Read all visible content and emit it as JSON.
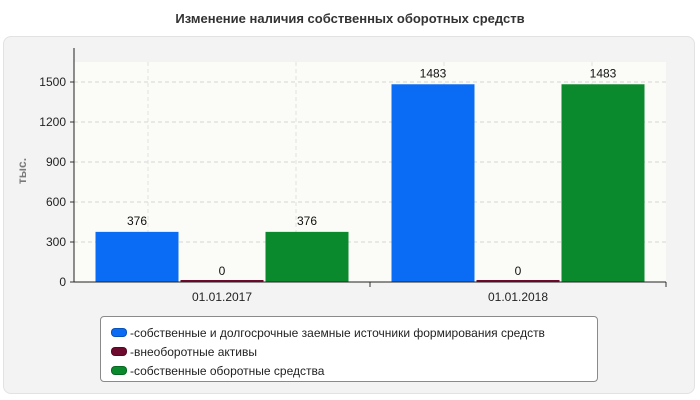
{
  "chart_data": {
    "type": "bar",
    "title": "Изменение наличия собственных оборотных средств",
    "ylabel": "тыс.",
    "xlabel": "",
    "categories": [
      "01.01.2017",
      "01.01.2018"
    ],
    "series": [
      {
        "name": "собственные и долгосрочные заемные источники формирования средств",
        "values": [
          376,
          1483
        ],
        "color": "#0a6cf5"
      },
      {
        "name": "внеоборотные активы",
        "values": [
          0,
          0
        ],
        "color": "#6e0a2e"
      },
      {
        "name": "собственные оборотные средства",
        "values": [
          376,
          1483
        ],
        "color": "#0a8a2c"
      }
    ],
    "ylim": [
      0,
      1650
    ],
    "yticks": [
      0,
      300,
      600,
      900,
      1200,
      1500
    ],
    "grid": true,
    "legend_position": "bottom"
  },
  "legend_prefix": "- "
}
